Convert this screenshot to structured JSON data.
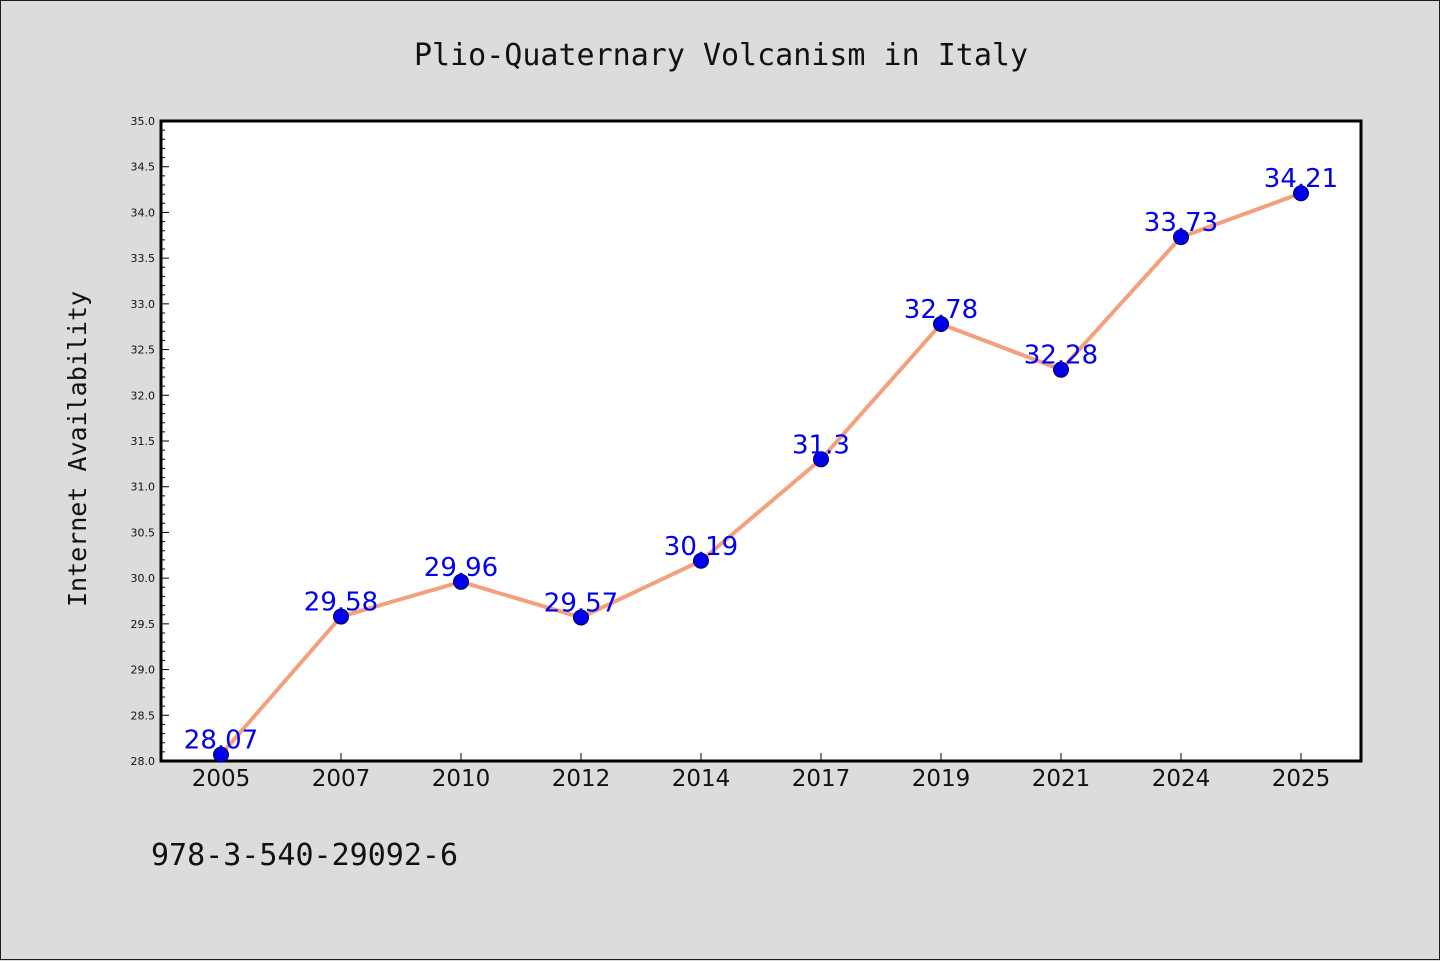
{
  "chart_data": {
    "type": "line",
    "title": "Plio-Quaternary Volcanism in Italy",
    "xlabel": "",
    "ylabel": "Internet Availability",
    "categories": [
      "2005",
      "2007",
      "2010",
      "2012",
      "2014",
      "2017",
      "2019",
      "2021",
      "2024",
      "2025"
    ],
    "series": [
      {
        "values": [
          28.07,
          29.58,
          29.96,
          29.57,
          30.19,
          31.3,
          32.78,
          32.28,
          33.73,
          34.21
        ],
        "data_labels": [
          "28.07",
          "29.58",
          "29.96",
          "29.57",
          "30.19",
          "31.3",
          "32.78",
          "32.28",
          "33.73",
          "34.21"
        ]
      }
    ],
    "ylim": [
      28.0,
      35.0
    ],
    "yticks": [
      "28.0",
      "28.5",
      "29.0",
      "29.5",
      "30.0",
      "30.5",
      "31.0",
      "31.5",
      "32.0",
      "32.5",
      "33.0",
      "33.5",
      "34.0",
      "34.5",
      "35.0"
    ],
    "grid": false,
    "legend": "none",
    "colors": {
      "line": "#f4a07e",
      "marker_fill": "#0000ee",
      "marker_edge": "#000044",
      "data_label": "#0000ee",
      "background": "#dcdcdc",
      "plot_area": "#ffffff"
    }
  },
  "footer": {
    "text": "978-3-540-29092-6"
  }
}
